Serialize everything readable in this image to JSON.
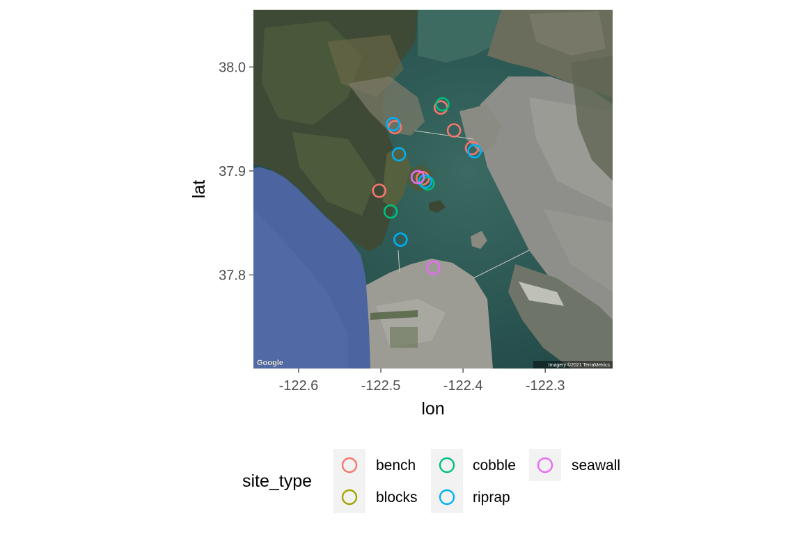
{
  "map": {
    "provider_logo": "Google",
    "attribution": "Imagery ©2021 TerraMetrics",
    "xlabel": "lon",
    "ylabel": "lat",
    "xlim": [
      -122.655,
      -122.218
    ],
    "ylim": [
      37.71,
      38.055
    ],
    "x_ticks": [
      -122.6,
      -122.5,
      -122.4,
      -122.3
    ],
    "x_tick_labels": [
      "-122.6",
      "-122.5",
      "-122.4",
      "-122.3"
    ],
    "y_ticks": [
      37.8,
      37.9,
      38.0
    ],
    "y_tick_labels": [
      "37.8",
      "37.9",
      "38.0"
    ]
  },
  "chart_data": {
    "type": "scatter",
    "xlabel": "lon",
    "ylabel": "lat",
    "xlim": [
      -122.655,
      -122.218
    ],
    "ylim": [
      37.71,
      38.055
    ],
    "legend_title": "site_type",
    "legend_position": "bottom",
    "series": [
      {
        "name": "bench",
        "color": "#F8766D",
        "points": [
          {
            "x": -122.483,
            "y": 37.942
          },
          {
            "x": -122.427,
            "y": 37.961
          },
          {
            "x": -122.411,
            "y": 37.939
          },
          {
            "x": -122.389,
            "y": 37.922
          },
          {
            "x": -122.502,
            "y": 37.881
          },
          {
            "x": -122.449,
            "y": 37.893
          }
        ]
      },
      {
        "name": "blocks",
        "color": "#A3A500",
        "points": []
      },
      {
        "name": "cobble",
        "color": "#00BF7D",
        "points": [
          {
            "x": -122.425,
            "y": 37.964
          },
          {
            "x": -122.488,
            "y": 37.861
          },
          {
            "x": -122.443,
            "y": 37.888
          }
        ]
      },
      {
        "name": "riprap",
        "color": "#00B0F6",
        "points": [
          {
            "x": -122.485,
            "y": 37.945
          },
          {
            "x": -122.478,
            "y": 37.916
          },
          {
            "x": -122.386,
            "y": 37.919
          },
          {
            "x": -122.446,
            "y": 37.89
          },
          {
            "x": -122.476,
            "y": 37.834
          }
        ]
      },
      {
        "name": "seawall",
        "color": "#E76BF3",
        "points": [
          {
            "x": -122.455,
            "y": 37.894
          },
          {
            "x": -122.436,
            "y": 37.807
          }
        ]
      }
    ]
  }
}
